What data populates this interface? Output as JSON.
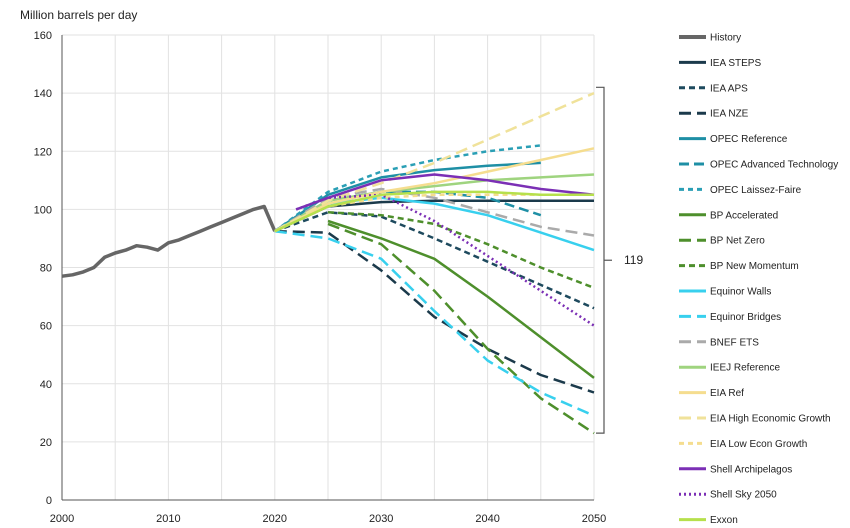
{
  "chart_data": {
    "type": "line",
    "ylabel": "Million barrels per day",
    "xlim": [
      2000,
      2050
    ],
    "ylim": [
      0,
      160
    ],
    "x_ticks": [
      2000,
      2010,
      2020,
      2030,
      2040,
      2050
    ],
    "y_ticks": [
      0,
      20,
      40,
      60,
      80,
      100,
      120,
      140,
      160
    ],
    "grid": true,
    "legend_position": "right",
    "bracket_label": "119",
    "bracket_range": [
      23,
      142
    ],
    "series": [
      {
        "name": "History",
        "color": "#666666",
        "dash": "solid",
        "width": 3.5,
        "points": [
          [
            2000,
            77
          ],
          [
            2001,
            77.5
          ],
          [
            2002,
            78.5
          ],
          [
            2003,
            80
          ],
          [
            2004,
            83.5
          ],
          [
            2005,
            85
          ],
          [
            2006,
            86
          ],
          [
            2007,
            87.5
          ],
          [
            2008,
            87
          ],
          [
            2009,
            86
          ],
          [
            2010,
            88.5
          ],
          [
            2011,
            89.5
          ],
          [
            2012,
            91
          ],
          [
            2013,
            92.5
          ],
          [
            2014,
            94
          ],
          [
            2015,
            95.5
          ],
          [
            2016,
            97
          ],
          [
            2017,
            98.5
          ],
          [
            2018,
            100
          ],
          [
            2019,
            101
          ],
          [
            2020,
            92.5
          ]
        ]
      },
      {
        "name": "IEA STEPS",
        "color": "#1b3a4b",
        "dash": "solid",
        "width": 2.5,
        "points": [
          [
            2020,
            92.5
          ],
          [
            2025,
            101
          ],
          [
            2030,
            102.5
          ],
          [
            2035,
            103
          ],
          [
            2040,
            103
          ],
          [
            2045,
            103
          ],
          [
            2050,
            103
          ]
        ]
      },
      {
        "name": "IEA APS",
        "color": "#1e4a5e",
        "dash": "6,4",
        "width": 2.5,
        "points": [
          [
            2020,
            92.5
          ],
          [
            2025,
            99
          ],
          [
            2030,
            97.5
          ],
          [
            2035,
            90
          ],
          [
            2040,
            82
          ],
          [
            2045,
            74
          ],
          [
            2050,
            66
          ]
        ]
      },
      {
        "name": "IEA NZE",
        "color": "#1b3a4b",
        "dash": "12,6",
        "width": 2.5,
        "points": [
          [
            2020,
            92.5
          ],
          [
            2025,
            92
          ],
          [
            2030,
            79
          ],
          [
            2035,
            63
          ],
          [
            2040,
            52
          ],
          [
            2045,
            43
          ],
          [
            2050,
            37
          ]
        ]
      },
      {
        "name": "OPEC Reference",
        "color": "#1e8fa5",
        "dash": "solid",
        "width": 2.5,
        "points": [
          [
            2020,
            92.5
          ],
          [
            2025,
            105
          ],
          [
            2030,
            111
          ],
          [
            2035,
            113.5
          ],
          [
            2040,
            115
          ],
          [
            2045,
            116
          ]
        ]
      },
      {
        "name": "OPEC Advanced Technology",
        "color": "#1e8fa5",
        "dash": "10,5",
        "width": 2.5,
        "points": [
          [
            2020,
            92.5
          ],
          [
            2025,
            103
          ],
          [
            2030,
            106
          ],
          [
            2035,
            106
          ],
          [
            2040,
            104
          ],
          [
            2045,
            98
          ]
        ]
      },
      {
        "name": "OPEC Laissez-Faire",
        "color": "#2a9fb5",
        "dash": "5,4",
        "width": 2.5,
        "points": [
          [
            2020,
            92.5
          ],
          [
            2025,
            106
          ],
          [
            2030,
            113
          ],
          [
            2035,
            117
          ],
          [
            2040,
            120
          ],
          [
            2045,
            122
          ]
        ]
      },
      {
        "name": "BP Accelerated",
        "color": "#4e8f2c",
        "dash": "solid",
        "width": 2.5,
        "points": [
          [
            2025,
            96
          ],
          [
            2030,
            90
          ],
          [
            2035,
            83
          ],
          [
            2040,
            70
          ],
          [
            2045,
            56
          ],
          [
            2050,
            42
          ]
        ]
      },
      {
        "name": "BP Net Zero",
        "color": "#4e8f2c",
        "dash": "12,6",
        "width": 2.5,
        "points": [
          [
            2025,
            95
          ],
          [
            2030,
            88
          ],
          [
            2035,
            72
          ],
          [
            2040,
            52
          ],
          [
            2045,
            35
          ],
          [
            2050,
            23
          ]
        ]
      },
      {
        "name": "BP New Momentum",
        "color": "#4e8f2c",
        "dash": "6,4",
        "width": 2.5,
        "points": [
          [
            2025,
            99
          ],
          [
            2030,
            98
          ],
          [
            2035,
            95
          ],
          [
            2040,
            88
          ],
          [
            2045,
            80
          ],
          [
            2050,
            73
          ]
        ]
      },
      {
        "name": "Equinor Walls",
        "color": "#38d0ee",
        "dash": "solid",
        "width": 2.5,
        "points": [
          [
            2020,
            92.5
          ],
          [
            2025,
            102
          ],
          [
            2030,
            104
          ],
          [
            2035,
            102
          ],
          [
            2040,
            98
          ],
          [
            2045,
            92
          ],
          [
            2050,
            86
          ]
        ]
      },
      {
        "name": "Equinor Bridges",
        "color": "#38d0ee",
        "dash": "12,6",
        "width": 2.5,
        "points": [
          [
            2020,
            92.5
          ],
          [
            2025,
            90
          ],
          [
            2030,
            83
          ],
          [
            2035,
            65
          ],
          [
            2040,
            48
          ],
          [
            2045,
            37
          ],
          [
            2050,
            29
          ]
        ]
      },
      {
        "name": "BNEF ETS",
        "color": "#aaaaaa",
        "dash": "12,6",
        "width": 2.5,
        "points": [
          [
            2020,
            92.5
          ],
          [
            2025,
            104
          ],
          [
            2030,
            107
          ],
          [
            2035,
            104
          ],
          [
            2040,
            99
          ],
          [
            2045,
            94
          ],
          [
            2050,
            91
          ]
        ]
      },
      {
        "name": "IEEJ Reference",
        "color": "#9fd47f",
        "dash": "solid",
        "width": 2.5,
        "points": [
          [
            2020,
            92.5
          ],
          [
            2025,
            103
          ],
          [
            2030,
            106
          ],
          [
            2035,
            108
          ],
          [
            2040,
            110
          ],
          [
            2045,
            111
          ],
          [
            2050,
            112
          ]
        ]
      },
      {
        "name": "EIA Ref",
        "color": "#f5dd8f",
        "dash": "solid",
        "width": 2.5,
        "points": [
          [
            2020,
            92.5
          ],
          [
            2025,
            102
          ],
          [
            2030,
            106
          ],
          [
            2035,
            109
          ],
          [
            2040,
            113
          ],
          [
            2045,
            117
          ],
          [
            2050,
            121
          ]
        ]
      },
      {
        "name": "EIA High Economic Growth",
        "color": "#f0e29a",
        "dash": "12,6",
        "width": 2.5,
        "points": [
          [
            2020,
            92.5
          ],
          [
            2025,
            103
          ],
          [
            2030,
            109
          ],
          [
            2035,
            116
          ],
          [
            2040,
            124
          ],
          [
            2045,
            132
          ],
          [
            2050,
            140
          ]
        ]
      },
      {
        "name": "EIA Low Econ Growth",
        "color": "#f5dd8f",
        "dash": "5,4",
        "width": 2.5,
        "points": [
          [
            2020,
            92.5
          ],
          [
            2025,
            101
          ],
          [
            2030,
            104
          ],
          [
            2035,
            105
          ],
          [
            2040,
            105
          ],
          [
            2045,
            105
          ],
          [
            2050,
            105
          ]
        ]
      },
      {
        "name": "Shell Archipelagos",
        "color": "#7b2fb5",
        "dash": "solid",
        "width": 2.5,
        "points": [
          [
            2022,
            100
          ],
          [
            2025,
            104
          ],
          [
            2030,
            110
          ],
          [
            2035,
            112
          ],
          [
            2040,
            110
          ],
          [
            2045,
            107
          ],
          [
            2050,
            105
          ]
        ]
      },
      {
        "name": "Shell Sky 2050",
        "color": "#7b2fb5",
        "dash": "2,3",
        "width": 2.5,
        "points": [
          [
            2022,
            100
          ],
          [
            2025,
            104
          ],
          [
            2030,
            105
          ],
          [
            2035,
            96
          ],
          [
            2040,
            84
          ],
          [
            2045,
            72
          ],
          [
            2050,
            60
          ]
        ]
      },
      {
        "name": "Exxon",
        "color": "#b6e04c",
        "dash": "solid",
        "width": 2.5,
        "points": [
          [
            2020,
            92.5
          ],
          [
            2025,
            101
          ],
          [
            2030,
            105
          ],
          [
            2035,
            106
          ],
          [
            2040,
            106
          ],
          [
            2045,
            105
          ],
          [
            2050,
            105
          ]
        ]
      }
    ]
  }
}
